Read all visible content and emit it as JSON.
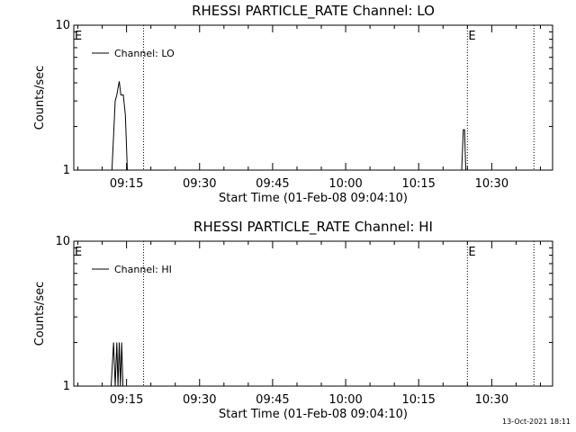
{
  "chart_data": [
    {
      "type": "line",
      "title": "RHESSI PARTICLE_RATE Channel: LO",
      "xlabel": "Start Time (01-Feb-08 09:04:10)",
      "ylabel": "Counts/sec",
      "yscale": "log",
      "ylim": [
        1,
        10
      ],
      "yticks": [
        "1",
        "10"
      ],
      "xlim": [
        "09:04:10",
        "10:42:30"
      ],
      "xticks": [
        "09:15",
        "09:30",
        "09:45",
        "10:00",
        "10:15",
        "10:30"
      ],
      "legend": "top-left",
      "series": [
        {
          "name": "Channel: LO",
          "x": [
            "09:10:40",
            "09:12:00",
            "09:12:40",
            "09:13:00",
            "09:13:30",
            "09:13:50",
            "09:14:20",
            "09:14:45",
            "09:15:10",
            "10:23:50",
            "10:24:10",
            "10:24:25",
            "10:24:40"
          ],
          "y": [
            1,
            1,
            3.0,
            3.3,
            4.1,
            3.3,
            3.3,
            2.4,
            1,
            1,
            1.9,
            1.9,
            1
          ]
        }
      ],
      "markers": [
        {
          "label": "E",
          "x": "09:04:10"
        },
        {
          "label": "",
          "x": "09:18:30"
        },
        {
          "label": "E",
          "x": "10:25:00"
        },
        {
          "label": "",
          "x": "10:38:40"
        }
      ]
    },
    {
      "type": "line",
      "title": "RHESSI PARTICLE_RATE Channel: HI",
      "xlabel": "Start Time (01-Feb-08 09:04:10)",
      "ylabel": "Counts/sec",
      "yscale": "log",
      "ylim": [
        1,
        10
      ],
      "yticks": [
        "1",
        "10"
      ],
      "xlim": [
        "09:04:10",
        "10:42:30"
      ],
      "xticks": [
        "09:15",
        "09:30",
        "09:45",
        "10:00",
        "10:15",
        "10:30"
      ],
      "legend": "top-left",
      "series": [
        {
          "name": "Channel: HI",
          "x": [
            "09:11:50",
            "09:12:20",
            "09:12:40",
            "09:13:00",
            "09:13:15",
            "09:13:30",
            "09:13:45",
            "09:14:00",
            "09:14:15"
          ],
          "y": [
            1,
            2,
            1,
            2,
            1,
            2,
            1,
            2,
            1
          ]
        }
      ],
      "markers": [
        {
          "label": "E",
          "x": "09:04:10"
        },
        {
          "label": "",
          "x": "09:18:30"
        },
        {
          "label": "E",
          "x": "10:25:00"
        },
        {
          "label": "",
          "x": "10:38:40"
        }
      ]
    }
  ],
  "footer": {
    "timestamp": "13-Oct-2021 18:11"
  }
}
